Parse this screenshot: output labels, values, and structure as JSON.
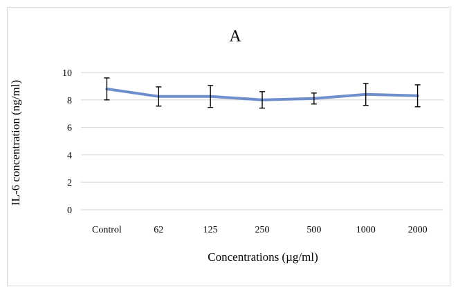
{
  "chart_data": {
    "type": "line",
    "title": "A",
    "xlabel": "Concentrations (µg/ml)",
    "ylabel": "IL-6 concentration (ng/ml)",
    "categories": [
      "Control",
      "62",
      "125",
      "250",
      "500",
      "1000",
      "2000"
    ],
    "series": [
      {
        "values": [
          8.8,
          8.25,
          8.25,
          8.0,
          8.1,
          8.4,
          8.3
        ],
        "error": [
          0.8,
          0.7,
          0.8,
          0.6,
          0.4,
          0.8,
          0.8
        ],
        "color": "#6f8fcc"
      }
    ],
    "ylim": [
      0,
      10
    ],
    "yticks": [
      "0",
      "2",
      "4",
      "6",
      "8",
      "10"
    ],
    "grid": true,
    "legend": "none"
  }
}
